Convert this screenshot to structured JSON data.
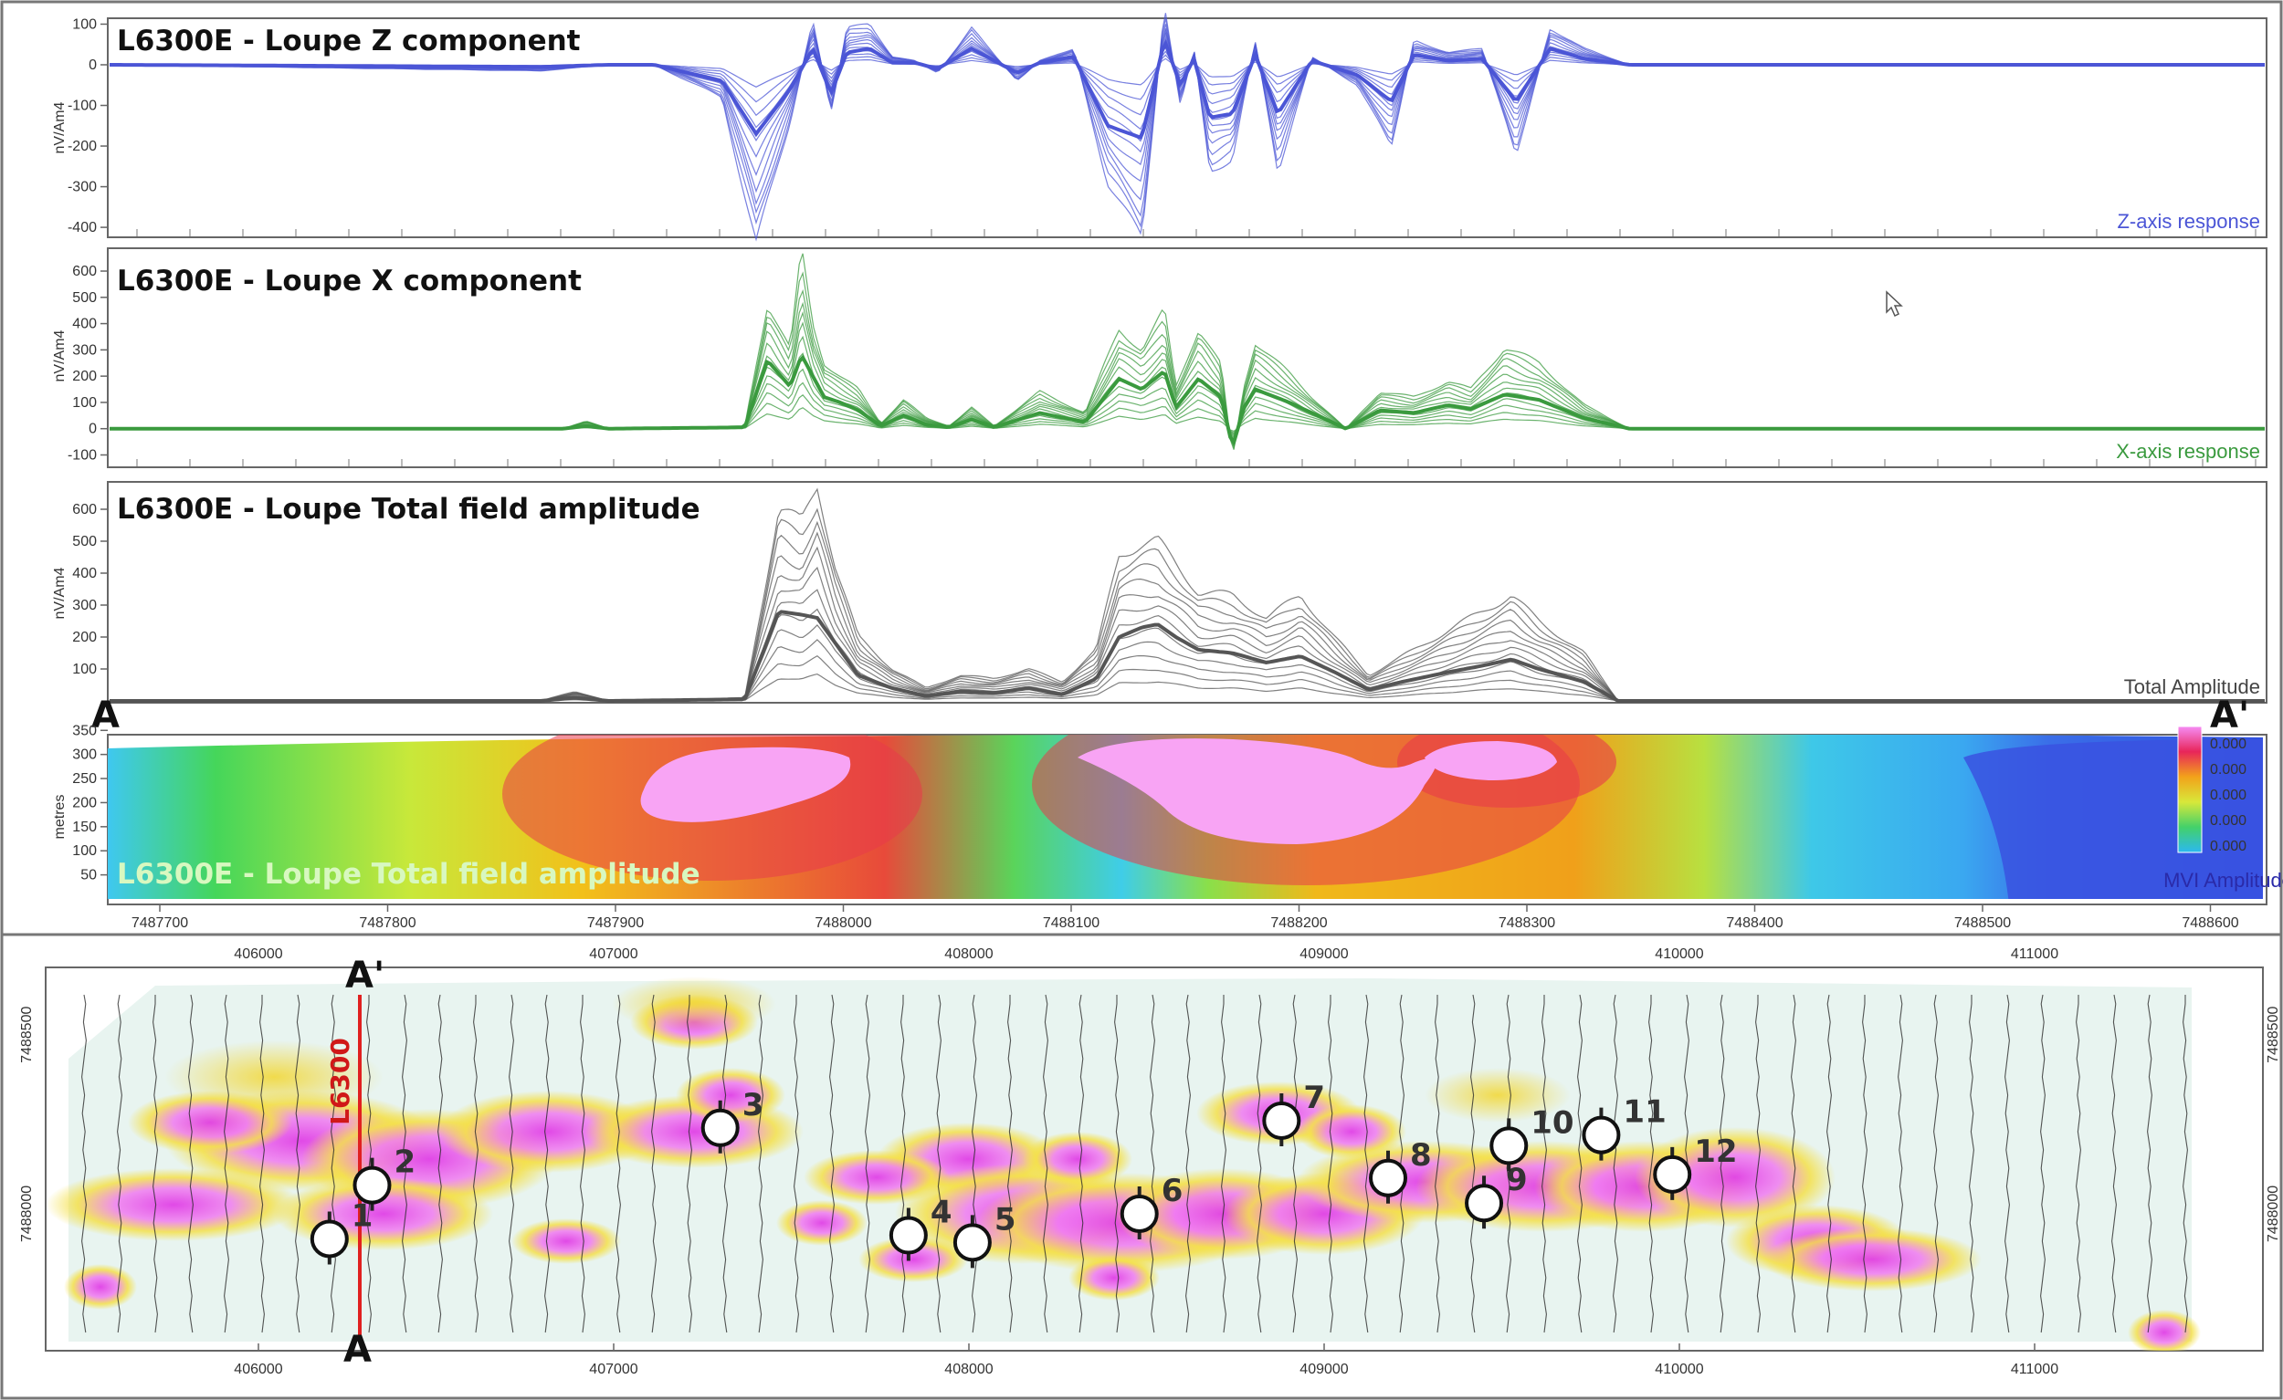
{
  "colors": {
    "z": "#4b55d6",
    "x": "#3a9a3e",
    "total": "#555555",
    "section_line": "#e02020",
    "hot": "#f06cf0",
    "warm": "#f4e04a"
  },
  "panels": {
    "z": {
      "title": "L6300E - Loupe Z component",
      "ylabel": "nV/Am4",
      "response": "Z-axis response"
    },
    "x": {
      "title": "L6300E - Loupe X component",
      "ylabel": "nV/Am4",
      "response": "X-axis response"
    },
    "total": {
      "title": "L6300E - Loupe Total field amplitude",
      "ylabel": "nV/Am4",
      "response": "Total Amplitude"
    },
    "depth": {
      "title": "L6300E - Loupe Total field amplitude",
      "ylabel": "metres",
      "legend": "MVI Amplitude",
      "legend_values": [
        "0.000",
        "0.000",
        "0.000",
        "0.000",
        "0.000"
      ]
    }
  },
  "section_labels": {
    "start": "A",
    "end": "A'",
    "map_top": "A'",
    "map_bottom": "A",
    "line": "L6300"
  },
  "chart_data": [
    {
      "type": "line",
      "name": "z-component",
      "title": "L6300E - Loupe Z component",
      "ylabel": "nV/Am4",
      "ylim": [
        -420,
        110
      ],
      "yticks": [
        100,
        0,
        -100,
        -200,
        -300,
        -400
      ],
      "xlim": [
        7487650,
        7488600
      ],
      "x": [
        7487650,
        7487840,
        7487870,
        7487890,
        7487920,
        7487935,
        7487950,
        7487960,
        7487968,
        7487975,
        7487985,
        7487995,
        7488005,
        7488015,
        7488030,
        7488050,
        7488060,
        7488075,
        7488090,
        7488105,
        7488115,
        7488122,
        7488128,
        7488135,
        7488145,
        7488155,
        7488165,
        7488180,
        7488200,
        7488215,
        7488225,
        7488240,
        7488255,
        7488270,
        7488285,
        7488300,
        7488320,
        7488360,
        7488600
      ],
      "peak": [
        0,
        -15,
        0,
        0,
        -80,
        -440,
        -140,
        110,
        -120,
        90,
        100,
        20,
        10,
        -20,
        90,
        -40,
        10,
        40,
        -290,
        -430,
        140,
        -100,
        40,
        -260,
        -230,
        60,
        -260,
        20,
        -50,
        -200,
        60,
        30,
        40,
        -220,
        90,
        40,
        0,
        0,
        0
      ],
      "median": [
        0,
        -5,
        0,
        0,
        -40,
        -170,
        -60,
        40,
        -70,
        30,
        40,
        5,
        5,
        -10,
        40,
        -20,
        5,
        20,
        -150,
        -180,
        60,
        -50,
        15,
        -130,
        -120,
        25,
        -120,
        10,
        -25,
        -90,
        25,
        10,
        15,
        -90,
        40,
        15,
        0,
        0,
        0
      ],
      "response_label": "Z-axis response"
    },
    {
      "type": "line",
      "name": "x-component",
      "title": "L6300E - Loupe X component",
      "ylabel": "nV/Am4",
      "ylim": [
        -140,
        680
      ],
      "yticks": [
        600,
        500,
        400,
        300,
        200,
        100,
        0,
        -100
      ],
      "xlim": [
        7487650,
        7488600
      ],
      "x": [
        7487650,
        7487850,
        7487860,
        7487870,
        7487930,
        7487940,
        7487950,
        7487955,
        7487960,
        7487965,
        7487972,
        7487980,
        7487990,
        7488000,
        7488010,
        7488020,
        7488030,
        7488040,
        7488060,
        7488080,
        7488095,
        7488105,
        7488115,
        7488120,
        7488130,
        7488140,
        7488145,
        7488150,
        7488155,
        7488170,
        7488180,
        7488195,
        7488210,
        7488225,
        7488240,
        7488250,
        7488265,
        7488280,
        7488300,
        7488320,
        7488600
      ],
      "peak": [
        0,
        0,
        30,
        0,
        10,
        480,
        300,
        680,
        400,
        250,
        200,
        150,
        20,
        110,
        40,
        10,
        80,
        10,
        140,
        60,
        380,
        300,
        450,
        160,
        380,
        240,
        -110,
        160,
        330,
        210,
        120,
        0,
        140,
        120,
        180,
        150,
        310,
        250,
        90,
        0,
        0
      ],
      "median": [
        0,
        0,
        10,
        0,
        5,
        260,
        160,
        280,
        200,
        120,
        100,
        70,
        10,
        50,
        15,
        5,
        35,
        5,
        60,
        25,
        190,
        150,
        220,
        80,
        190,
        120,
        -70,
        80,
        150,
        100,
        60,
        0,
        70,
        60,
        90,
        75,
        130,
        110,
        40,
        0,
        0
      ],
      "response_label": "X-axis response"
    },
    {
      "type": "line",
      "name": "total-field",
      "title": "L6300E - Loupe Total field amplitude",
      "ylabel": "nV/Am4",
      "ylim": [
        0,
        680
      ],
      "yticks": [
        600,
        500,
        400,
        300,
        200,
        100
      ],
      "xlim": [
        7487650,
        7488600
      ],
      "x": [
        7487650,
        7487840,
        7487855,
        7487870,
        7487930,
        7487945,
        7487955,
        7487962,
        7487970,
        7487980,
        7487995,
        7488010,
        7488025,
        7488040,
        7488055,
        7488070,
        7488085,
        7488095,
        7488105,
        7488112,
        7488120,
        7488130,
        7488145,
        7488160,
        7488175,
        7488190,
        7488205,
        7488220,
        7488240,
        7488255,
        7488268,
        7488280,
        7488300,
        7488315,
        7488600
      ],
      "peak": [
        0,
        0,
        30,
        0,
        10,
        600,
        560,
        680,
        420,
        200,
        100,
        40,
        80,
        70,
        100,
        60,
        160,
        460,
        490,
        500,
        430,
        340,
        330,
        260,
        330,
        200,
        80,
        140,
        220,
        280,
        330,
        250,
        150,
        0,
        0
      ],
      "median": [
        0,
        0,
        10,
        0,
        5,
        280,
        270,
        260,
        180,
        80,
        40,
        15,
        30,
        25,
        40,
        20,
        70,
        200,
        230,
        240,
        200,
        160,
        150,
        120,
        140,
        90,
        35,
        60,
        90,
        110,
        130,
        100,
        60,
        0,
        0
      ],
      "response_label": "Total Amplitude"
    }
  ],
  "depth_section": {
    "ylabel": "metres",
    "yticks": [
      350,
      300,
      250,
      200,
      150,
      100,
      50
    ],
    "xticks": [
      "7487700",
      "7487800",
      "7487900",
      "7488000",
      "7488100",
      "7488200",
      "7488300",
      "7488400",
      "7488500",
      "7488600"
    ],
    "legend_label": "MVI Amplitude"
  },
  "map": {
    "eastings": [
      "406000",
      "407000",
      "408000",
      "409000",
      "410000",
      "411000"
    ],
    "northings": [
      "7488500",
      "7488000"
    ],
    "line_label": "L6300",
    "drillholes": [
      {
        "label": "1",
        "e": 406200,
        "n": 7487930
      },
      {
        "label": "2",
        "e": 406320,
        "n": 7488080
      },
      {
        "label": "3",
        "e": 407300,
        "n": 7488240
      },
      {
        "label": "4",
        "e": 407830,
        "n": 7487940
      },
      {
        "label": "5",
        "e": 408010,
        "n": 7487920
      },
      {
        "label": "6",
        "e": 408480,
        "n": 7488000
      },
      {
        "label": "7",
        "e": 408880,
        "n": 7488260
      },
      {
        "label": "8",
        "e": 409180,
        "n": 7488100
      },
      {
        "label": "9",
        "e": 409450,
        "n": 7488030
      },
      {
        "label": "10",
        "e": 409520,
        "n": 7488190
      },
      {
        "label": "11",
        "e": 409780,
        "n": 7488220
      },
      {
        "label": "12",
        "e": 409980,
        "n": 7488110
      }
    ]
  }
}
